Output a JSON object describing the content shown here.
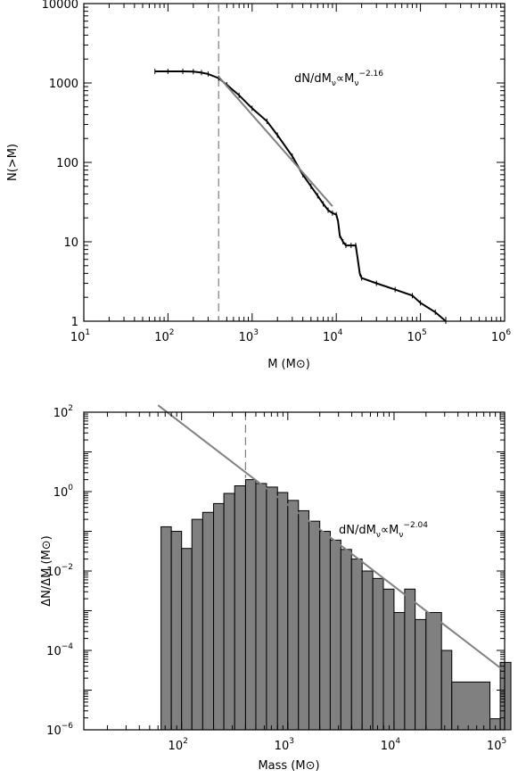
{
  "chart_data": [
    {
      "type": "line",
      "ylabel": "N(>M)",
      "xlabel": "M (M⊙)",
      "xscale": "log",
      "yscale": "log",
      "xlim": [
        10,
        1000000
      ],
      "ylim": [
        1,
        10000
      ],
      "xticks": [
        {
          "v": 10,
          "b": "10",
          "e": "1"
        },
        {
          "v": 100,
          "b": "10",
          "e": "2"
        },
        {
          "v": 1000,
          "b": "10",
          "e": "3"
        },
        {
          "v": 10000,
          "b": "10",
          "e": "4"
        },
        {
          "v": 100000,
          "b": "10",
          "e": "5"
        },
        {
          "v": 1000000,
          "b": "10",
          "e": "6"
        }
      ],
      "yticks": [
        {
          "v": 1,
          "label": "1"
        },
        {
          "v": 10,
          "label": "10"
        },
        {
          "v": 100,
          "label": "100"
        },
        {
          "v": 1000,
          "label": "1000"
        },
        {
          "v": 10000,
          "label": "10000"
        }
      ],
      "annotation": {
        "base": "dN/dM",
        "sub1": "ν",
        "mid": "∝M",
        "sub2": "ν",
        "exp": "−2.16"
      },
      "series": [
        {
          "x": [
            70,
            100,
            150,
            200,
            250,
            300,
            400,
            500,
            700,
            1000,
            1500,
            2000,
            3000,
            4000,
            5000,
            6000,
            7000,
            8000,
            9000,
            10000,
            10500,
            11000,
            12000,
            13000,
            15000,
            17000,
            18000,
            19000,
            20000,
            30000,
            50000,
            80000,
            100000,
            150000,
            200000
          ],
          "y": [
            1400,
            1400,
            1400,
            1390,
            1350,
            1300,
            1150,
            950,
            700,
            480,
            330,
            220,
            120,
            70,
            50,
            38,
            30,
            25,
            23,
            22,
            18,
            12,
            10,
            9,
            9,
            9,
            6,
            4,
            3.5,
            3,
            2.5,
            2.1,
            1.7,
            1.3,
            1
          ]
        }
      ],
      "fit": {
        "x": [
          400,
          9000
        ],
        "y": [
          1200,
          28
        ]
      },
      "threshold_x": 400
    },
    {
      "type": "bar",
      "ylabel": "ΔN/ΔM (M⊙)",
      "xlabel": "Mass (M⊙)",
      "xscale": "log",
      "yscale": "log",
      "xlim": [
        12,
        110000
      ],
      "ylim": [
        1e-06,
        100
      ],
      "xticks": [
        {
          "v": 100,
          "b": "10",
          "e": "2"
        },
        {
          "v": 1000,
          "b": "10",
          "e": "3"
        },
        {
          "v": 10000,
          "b": "10",
          "e": "4"
        },
        {
          "v": 100000,
          "b": "10",
          "e": "5"
        }
      ],
      "yticks": [
        {
          "v": 1e-06,
          "b": "10",
          "e": "−6"
        },
        {
          "v": 0.0001,
          "b": "10",
          "e": "−4"
        },
        {
          "v": 0.01,
          "b": "10",
          "e": "−2"
        },
        {
          "v": 1,
          "b": "10",
          "e": "0"
        },
        {
          "v": 100,
          "b": "10",
          "e": "2"
        }
      ],
      "annotation": {
        "base": "dN/dM",
        "sub1": "ν",
        "mid": "∝M",
        "sub2": "ν",
        "exp": "−2.04"
      },
      "bin_edges": [
        64,
        80,
        100,
        125,
        158,
        200,
        250,
        316,
        400,
        500,
        630,
        800,
        1000,
        1260,
        1580,
        2000,
        2510,
        3160,
        3980,
        5010,
        6310,
        7940,
        10000,
        12600,
        15800,
        20000,
        28000,
        35000,
        80000,
        100000
      ],
      "values": [
        0.13,
        0.1,
        0.037,
        0.2,
        0.3,
        0.5,
        0.9,
        1.4,
        2.0,
        1.6,
        1.3,
        0.95,
        0.6,
        0.33,
        0.18,
        0.1,
        0.06,
        0.035,
        0.02,
        0.01,
        0.0065,
        0.0035,
        0.0009,
        0.0035,
        0.0006,
        0.0009,
        0.0001,
        1.6e-05,
        1.9e-06,
        5e-05
      ],
      "fit": {
        "x": [
          60,
          110000
        ],
        "y": [
          150,
          3e-05
        ]
      },
      "threshold_x": 400
    }
  ]
}
